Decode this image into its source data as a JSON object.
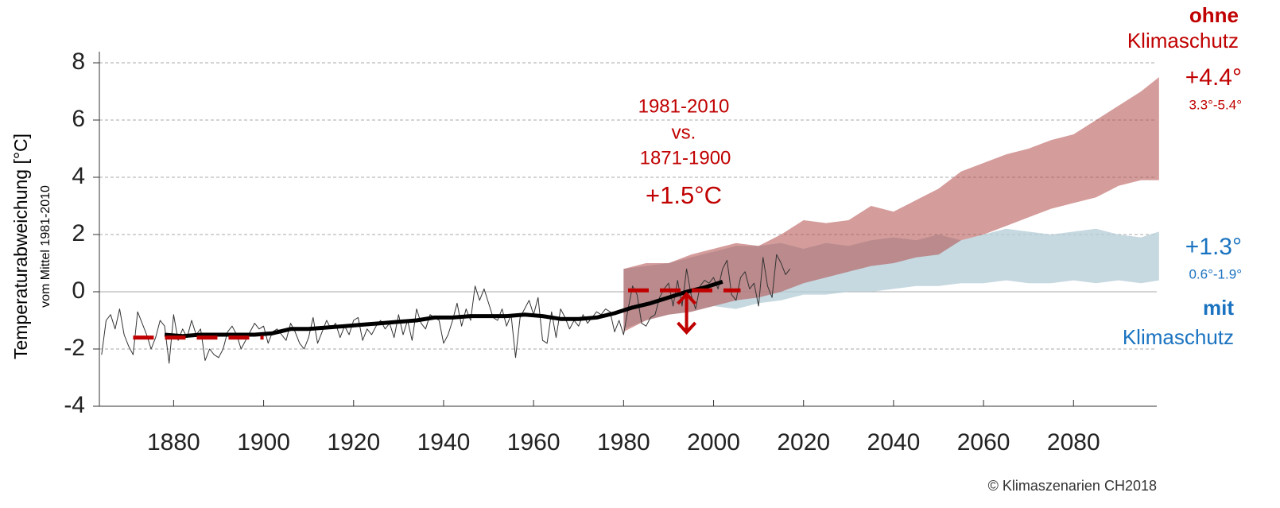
{
  "chart_data": {
    "type": "line",
    "y_label": "Temperaturabweichung [°C]",
    "y_sublabel": "vom Mittel 1981-2010",
    "xlim": [
      1863.5,
      2098.5
    ],
    "ylim": [
      -4,
      8
    ],
    "xticks": [
      1880,
      1900,
      1920,
      1940,
      1960,
      1980,
      2000,
      2020,
      2040,
      2060,
      2080
    ],
    "yticks": [
      -4,
      -2,
      0,
      2,
      4,
      6,
      8
    ],
    "grid": true,
    "observed": {
      "color": "#333333",
      "x": [
        1864,
        1865,
        1866,
        1867,
        1868,
        1869,
        1870,
        1871,
        1872,
        1873,
        1874,
        1875,
        1876,
        1877,
        1878,
        1879,
        1880,
        1881,
        1882,
        1883,
        1884,
        1885,
        1886,
        1887,
        1888,
        1889,
        1890,
        1891,
        1892,
        1893,
        1894,
        1895,
        1896,
        1897,
        1898,
        1899,
        1900,
        1901,
        1902,
        1903,
        1904,
        1905,
        1906,
        1907,
        1908,
        1909,
        1910,
        1911,
        1912,
        1913,
        1914,
        1915,
        1916,
        1917,
        1918,
        1919,
        1920,
        1921,
        1922,
        1923,
        1924,
        1925,
        1926,
        1927,
        1928,
        1929,
        1930,
        1931,
        1932,
        1933,
        1934,
        1935,
        1936,
        1937,
        1938,
        1939,
        1940,
        1941,
        1942,
        1943,
        1944,
        1945,
        1946,
        1947,
        1948,
        1949,
        1950,
        1951,
        1952,
        1953,
        1954,
        1955,
        1956,
        1957,
        1958,
        1959,
        1960,
        1961,
        1962,
        1963,
        1964,
        1965,
        1966,
        1967,
        1968,
        1969,
        1970,
        1971,
        1972,
        1973,
        1974,
        1975,
        1976,
        1977,
        1978,
        1979,
        1980,
        1981,
        1982,
        1983,
        1984,
        1985,
        1986,
        1987,
        1988,
        1989,
        1990,
        1991,
        1992,
        1993,
        1994,
        1995,
        1996,
        1997,
        1998,
        1999,
        2000,
        2001,
        2002,
        2003,
        2004,
        2005,
        2006,
        2007,
        2008,
        2009,
        2010,
        2011,
        2012,
        2013,
        2014,
        2015,
        2016,
        2017
      ],
      "values": [
        -2.2,
        -1.0,
        -0.8,
        -1.3,
        -0.6,
        -1.5,
        -1.9,
        -2.2,
        -0.7,
        -1.1,
        -1.5,
        -2.0,
        -1.6,
        -1.0,
        -1.2,
        -2.5,
        -0.8,
        -1.7,
        -1.3,
        -1.6,
        -1.0,
        -1.5,
        -1.3,
        -2.4,
        -2.0,
        -2.2,
        -2.3,
        -2.0,
        -1.4,
        -1.2,
        -1.5,
        -2.0,
        -1.7,
        -1.4,
        -1.1,
        -1.3,
        -1.2,
        -1.8,
        -1.4,
        -1.3,
        -1.5,
        -1.7,
        -1.1,
        -1.4,
        -1.8,
        -2.0,
        -1.6,
        -0.9,
        -1.8,
        -1.4,
        -1.0,
        -1.3,
        -1.1,
        -1.6,
        -1.2,
        -1.5,
        -1.0,
        -0.9,
        -1.7,
        -1.3,
        -1.5,
        -1.2,
        -1.0,
        -1.3,
        -1.1,
        -1.6,
        -0.8,
        -1.5,
        -1.0,
        -1.7,
        -0.6,
        -1.1,
        -1.3,
        -0.8,
        -0.9,
        -1.0,
        -1.8,
        -1.5,
        -1.0,
        -0.4,
        -1.2,
        -0.6,
        -1.0,
        0.2,
        -0.3,
        0.1,
        -0.4,
        -0.9,
        -1.0,
        -0.6,
        -1.2,
        -0.8,
        -2.3,
        -0.9,
        -0.6,
        -0.3,
        -0.8,
        -0.2,
        -1.7,
        -1.8,
        -0.7,
        -1.6,
        -0.6,
        -0.9,
        -1.3,
        -1.0,
        -1.2,
        -0.8,
        -1.1,
        -0.9,
        -0.7,
        -0.8,
        -0.6,
        -0.7,
        -1.4,
        -1.0,
        -1.5,
        -0.6,
        0.2,
        -0.1,
        -1.1,
        -1.2,
        -0.9,
        -0.8,
        -0.2,
        0.1,
        0.3,
        -0.5,
        0.4,
        -0.5,
        0.8,
        -0.1,
        -0.6,
        0.2,
        0.4,
        0.3,
        0.5,
        0.1,
        0.8,
        1.1,
        -0.1,
        -0.3,
        0.5,
        0.7,
        0.1,
        0.3,
        -0.5,
        1.2,
        0.2,
        -0.2,
        1.3,
        1.0,
        0.6,
        0.8
      ]
    },
    "smoothed": {
      "color": "#000000",
      "x": [
        1878,
        1882,
        1886,
        1890,
        1894,
        1898,
        1902,
        1906,
        1910,
        1914,
        1918,
        1922,
        1926,
        1930,
        1934,
        1938,
        1942,
        1946,
        1950,
        1954,
        1958,
        1962,
        1966,
        1970,
        1974,
        1978,
        1982,
        1986,
        1990,
        1994,
        1998,
        2002
      ],
      "values": [
        -1.5,
        -1.55,
        -1.5,
        -1.5,
        -1.5,
        -1.5,
        -1.45,
        -1.3,
        -1.3,
        -1.25,
        -1.2,
        -1.15,
        -1.1,
        -1.05,
        -1.0,
        -0.9,
        -0.9,
        -0.85,
        -0.85,
        -0.85,
        -0.8,
        -0.85,
        -0.95,
        -0.95,
        -0.9,
        -0.75,
        -0.55,
        -0.4,
        -0.2,
        0.0,
        0.15,
        0.35
      ]
    },
    "bands": [
      {
        "color": "#b3cbd6",
        "x": [
          1980,
          1985,
          1990,
          1995,
          2000,
          2005,
          2010,
          2015,
          2020,
          2025,
          2030,
          2035,
          2040,
          2045,
          2050,
          2055,
          2060,
          2065,
          2070,
          2075,
          2080,
          2085,
          2090,
          2095,
          2099
        ],
        "lower": [
          -1.3,
          -1.0,
          -0.8,
          -0.7,
          -0.5,
          -0.6,
          -0.4,
          -0.3,
          -0.1,
          -0.1,
          0.0,
          0.0,
          0.1,
          0.2,
          0.2,
          0.3,
          0.3,
          0.4,
          0.3,
          0.3,
          0.4,
          0.3,
          0.4,
          0.3,
          0.4
        ],
        "upper": [
          0.8,
          0.9,
          1.0,
          1.2,
          1.4,
          1.6,
          1.6,
          1.7,
          1.5,
          1.7,
          1.6,
          1.8,
          1.9,
          1.8,
          2.0,
          1.8,
          2.0,
          2.2,
          2.1,
          2.0,
          2.1,
          2.2,
          2.0,
          1.9,
          2.1
        ]
      },
      {
        "color": "#b04a48",
        "x": [
          1980,
          1985,
          1990,
          1995,
          2000,
          2005,
          2010,
          2015,
          2020,
          2025,
          2030,
          2035,
          2040,
          2045,
          2050,
          2055,
          2060,
          2065,
          2070,
          2075,
          2080,
          2085,
          2090,
          2095,
          2099
        ],
        "lower": [
          -1.4,
          -1.0,
          -0.8,
          -0.7,
          -0.5,
          -0.3,
          -0.2,
          0.0,
          0.3,
          0.5,
          0.7,
          0.9,
          1.0,
          1.2,
          1.3,
          1.8,
          2.0,
          2.3,
          2.6,
          2.9,
          3.1,
          3.3,
          3.7,
          3.9,
          3.9
        ],
        "upper": [
          0.8,
          1.0,
          1.0,
          1.3,
          1.5,
          1.7,
          1.6,
          2.0,
          2.5,
          2.4,
          2.5,
          3.0,
          2.8,
          3.2,
          3.6,
          4.2,
          4.5,
          4.8,
          5.0,
          5.3,
          5.5,
          6.0,
          6.5,
          7.0,
          7.5
        ]
      }
    ],
    "reference_periods": [
      {
        "x": [
          1871,
          1900
        ],
        "value": -1.6,
        "color": "#c00000"
      },
      {
        "x": [
          1981,
          2006
        ],
        "value": 0.05,
        "color": "#c00000"
      }
    ],
    "arrow": {
      "x": 1994,
      "from": 0,
      "to": -1.5,
      "color": "#c00000"
    },
    "annotations": {
      "period_a": "1981-2010",
      "vs": "vs.",
      "period_b": "1871-1900",
      "difference": "+1.5°C",
      "ohne": "ohne",
      "ohne_label": "Klimaschutz",
      "ohne_value": "+4.4°",
      "ohne_range": "3.3°-5.4°",
      "mit_value": "+1.3°",
      "mit_range": "0.6°-1.9°",
      "mit": "mit",
      "mit_label": "Klimaschutz",
      "copyright": "© Klimaszenarien CH2018"
    }
  }
}
